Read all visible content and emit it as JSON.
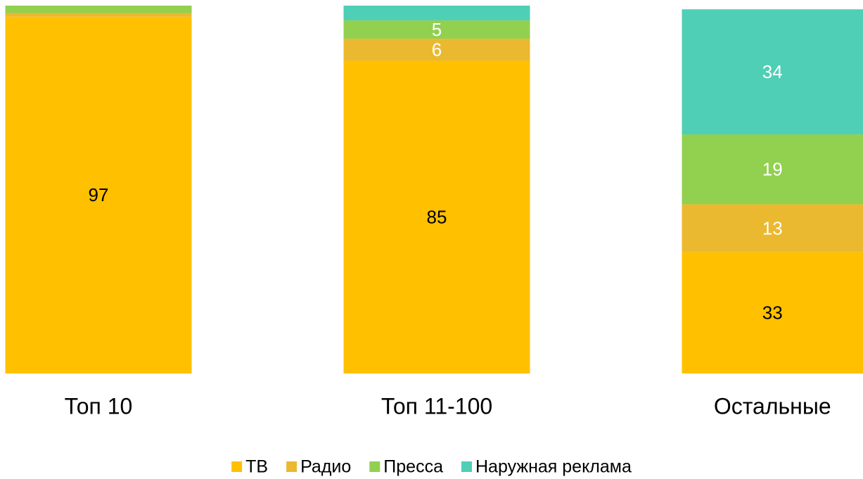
{
  "chart_data": {
    "type": "stacked_bar",
    "categories": [
      "Топ 10",
      "Топ 11-100",
      "Остальные"
    ],
    "ylim": [
      0,
      100
    ],
    "series": [
      {
        "name": "ТВ",
        "color": "#ffc000",
        "values": [
          97,
          85,
          33
        ],
        "value_labels": [
          97,
          85,
          33
        ]
      },
      {
        "name": "Радио",
        "color": "#ebb92f",
        "values": [
          1,
          6,
          13
        ],
        "value_labels": [
          null,
          6,
          13
        ]
      },
      {
        "name": "Пресса",
        "color": "#92d050",
        "values": [
          2,
          5,
          19
        ],
        "value_labels": [
          null,
          5,
          19
        ]
      },
      {
        "name": "Наружная реклама",
        "color": "#4fcfb5",
        "values": [
          0,
          4,
          34
        ],
        "value_labels": [
          null,
          null,
          34
        ]
      }
    ]
  }
}
